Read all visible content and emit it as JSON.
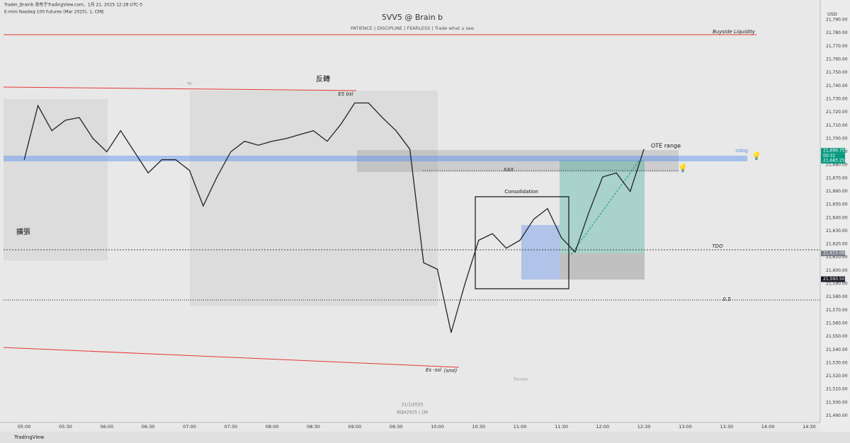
{
  "header": {
    "author_line": "Trader_Brainb 发布于TradingView.com，1月 21, 2025 12:28 UTC-5",
    "symbol_line": "E-mini Nasdaq-100 Futures (Mar 2025), 1, CME"
  },
  "chart_data": {
    "type": "line",
    "title": "5VV5 @ Brain b",
    "subtitle": "PATIENCE  |  DISCIPLINE  |  FEARLESS  |  Trade what u see",
    "currency": "USD",
    "color": "#222222",
    "x": [
      "05:00",
      "05:10",
      "05:20",
      "05:30",
      "05:40",
      "05:50",
      "06:00",
      "06:10",
      "06:20",
      "06:30",
      "06:40",
      "06:50",
      "07:00",
      "07:10",
      "07:20",
      "07:30",
      "07:40",
      "07:50",
      "08:00",
      "08:10",
      "08:20",
      "08:30",
      "08:40",
      "08:50",
      "09:00",
      "09:10",
      "09:20",
      "09:30",
      "09:40",
      "09:50",
      "10:00",
      "10:10",
      "10:20",
      "10:30",
      "10:40",
      "10:50",
      "11:00",
      "11:10",
      "11:20",
      "11:30",
      "11:40",
      "11:50",
      "12:00",
      "12:10",
      "12:20",
      "12:30"
    ],
    "values": [
      21684,
      21725,
      21706,
      21714,
      21716,
      21700,
      21690,
      21706,
      21690,
      21674,
      21684,
      21684,
      21676,
      21649,
      21671,
      21690,
      21698,
      21695,
      21698,
      21700,
      21703,
      21706,
      21698,
      21711,
      21727,
      21727,
      21716,
      21706,
      21692,
      21606,
      21601,
      21553,
      21590,
      21623,
      21628,
      21617,
      21623,
      21639,
      21647,
      21625,
      21614,
      21644,
      21671,
      21674,
      21660,
      21692
    ],
    "xlim": [
      "04:45",
      "14:38"
    ],
    "xticks": [
      "05:00",
      "05:30",
      "06:00",
      "06:30",
      "07:00",
      "07:30",
      "08:00",
      "08:30",
      "09:00",
      "09:30",
      "10:00",
      "10:30",
      "11:00",
      "11:30",
      "12:00",
      "12:30",
      "13:00",
      "13:30",
      "14:00",
      "14:30"
    ],
    "ylim": [
      21486,
      21797
    ],
    "yticks": [
      {
        "value": 21490,
        "label": "21,490.00"
      },
      {
        "value": 21500,
        "label": "21,500.00"
      },
      {
        "value": 21510,
        "label": "21,510.00"
      },
      {
        "value": 21520,
        "label": "21,520.00"
      },
      {
        "value": 21530,
        "label": "21,530.00"
      },
      {
        "value": 21540,
        "label": "21,540.00"
      },
      {
        "value": 21550,
        "label": "21,550.00"
      },
      {
        "value": 21560,
        "label": "21,560.00"
      },
      {
        "value": 21570,
        "label": "21,570.00"
      },
      {
        "value": 21580,
        "label": "21,580.00"
      },
      {
        "value": 21590,
        "label": "21,590.00"
      },
      {
        "value": 21600,
        "label": "21,600.00"
      },
      {
        "value": 21610,
        "label": "21,610.00"
      },
      {
        "value": 21620,
        "label": "21,620.00"
      },
      {
        "value": 21630,
        "label": "21,630.00"
      },
      {
        "value": 21640,
        "label": "21,640.00"
      },
      {
        "value": 21650,
        "label": "21,650.00"
      },
      {
        "value": 21660,
        "label": "21,660.00"
      },
      {
        "value": 21670,
        "label": "21,670.00"
      },
      {
        "value": 21680,
        "label": "21,680.00"
      },
      {
        "value": 21690,
        "label": "21,690.00"
      },
      {
        "value": 21700,
        "label": "21,700.00"
      },
      {
        "value": 21710,
        "label": "21,710.00"
      },
      {
        "value": 21720,
        "label": "21,720.00"
      },
      {
        "value": 21730,
        "label": "21,730.00"
      },
      {
        "value": 21740,
        "label": "21,740.00"
      },
      {
        "value": 21750,
        "label": "21,750.00"
      },
      {
        "value": 21760,
        "label": "21,760.00"
      },
      {
        "value": 21770,
        "label": "21,770.00"
      },
      {
        "value": 21780,
        "label": "21,780.00"
      },
      {
        "value": 21790,
        "label": "21,790.00"
      }
    ],
    "price_tags": [
      {
        "value": 21690.75,
        "label": "21,690.75",
        "color": "#089981"
      },
      {
        "value": 21683.25,
        "label": "21,683.25",
        "color": "#089981"
      },
      {
        "value": 21613,
        "label": "21,613.00",
        "color": "#787b86"
      },
      {
        "value": 21593.5,
        "label": "21,593.50",
        "color": "#131722"
      }
    ],
    "countdown": "00:31",
    "grid": false
  },
  "annotations": {
    "reversal": "反轉",
    "expansion": "擴張",
    "es_bsl": "ES bsl",
    "es_ssl": "Es -ssl",
    "smt": "(smt)",
    "consolidation": "Consolidation",
    "xxx": "XXX",
    "ote": "OTE range",
    "ndog": "ndog",
    "tdo": "TDO",
    "half": "0.5",
    "buyside": "Buyside Liquidity",
    "ny": "Ny",
    "day": "Tuesday",
    "date": "21/1/2025",
    "contract": "NQH2025  |  1M"
  },
  "footer": {
    "brand": "TradingView"
  }
}
